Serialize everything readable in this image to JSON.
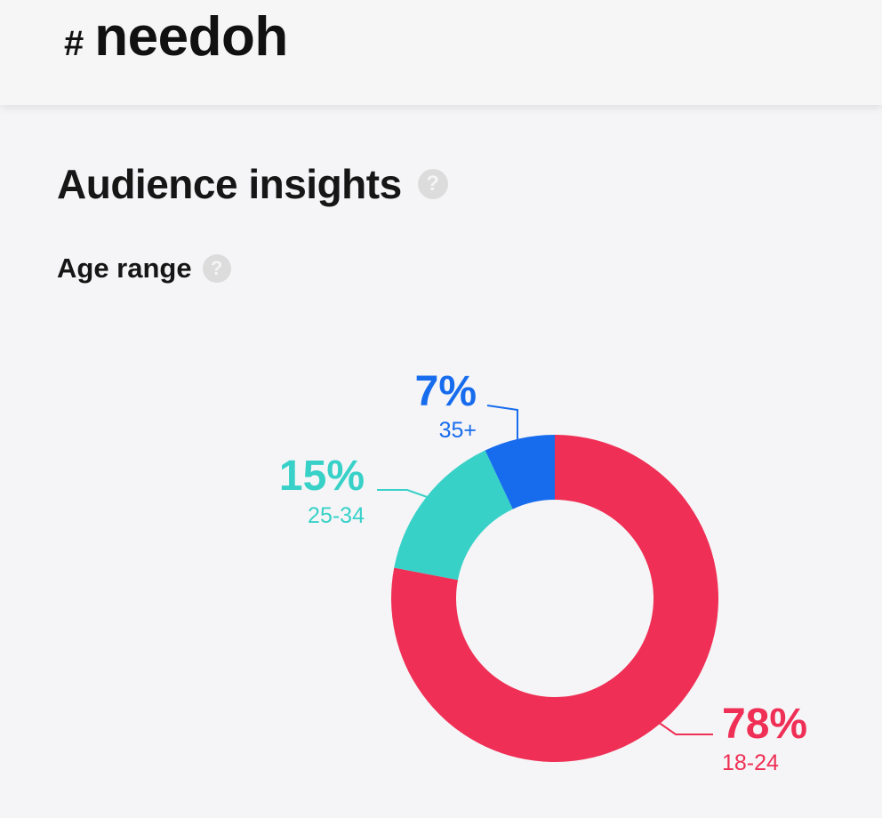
{
  "header": {
    "hash_symbol": "#",
    "hashtag": "needoh"
  },
  "section": {
    "title": "Audience insights",
    "help_glyph": "?"
  },
  "age_range": {
    "title": "Age range",
    "help_glyph": "?"
  },
  "colors": {
    "red": "#ef2f55",
    "teal": "#38d1c8",
    "blue": "#176ced"
  },
  "chart_data": {
    "type": "pie",
    "style": "donut",
    "categories": [
      "18-24",
      "25-34",
      "35+"
    ],
    "values": [
      78,
      15,
      7
    ],
    "labels": [
      "78%",
      "15%",
      "7%"
    ],
    "colors": [
      "#ef2f55",
      "#38d1c8",
      "#176ced"
    ]
  }
}
